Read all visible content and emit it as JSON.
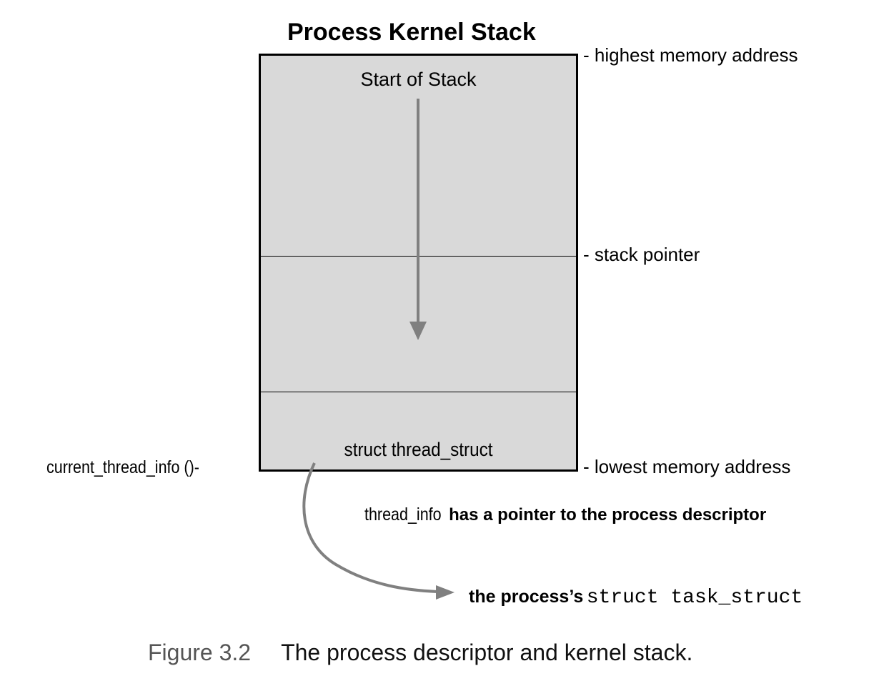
{
  "title": "Process Kernel Stack",
  "stack": {
    "start_label": "Start of Stack",
    "bottom_label": "struct thread_struct"
  },
  "markers": {
    "highest": "- highest memory address",
    "stack_pointer": "- stack pointer",
    "lowest": "- lowest memory address"
  },
  "left_label": "current_thread_info ()-",
  "pointer_note": {
    "prefix": "thread_info",
    "rest": "has a pointer to the process descriptor"
  },
  "task_struct_label": {
    "bold": "the process’s",
    "code": "struct task_struct"
  },
  "caption": {
    "number": "Figure 3.2",
    "text": "The process descriptor and kernel stack."
  },
  "colors": {
    "stack_fill": "#d9d9d9",
    "arrow": "#808080"
  }
}
